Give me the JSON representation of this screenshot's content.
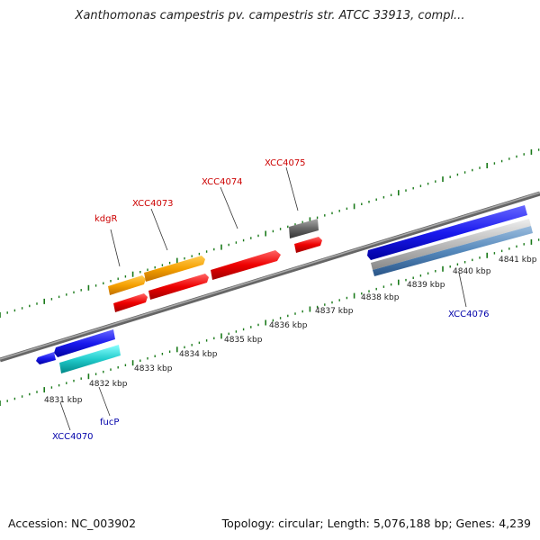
{
  "title": "Xanthomonas campestris pv. campestris str. ATCC 33913, compl...",
  "accession": "Accession: NC_003902",
  "summary": "Topology: circular; Length: 5,076,188 bp; Genes: 4,239",
  "scale_labels": [
    "4831 kbp",
    "4832 kbp",
    "4833 kbp",
    "4834 kbp",
    "4835 kbp",
    "4836 kbp",
    "4837 kbp",
    "4838 kbp",
    "4839 kbp",
    "4840 kbp",
    "4841 kbp"
  ],
  "genes": {
    "kdgR": {
      "label": "kdgR",
      "color": "#cc0000"
    },
    "XCC4073": {
      "label": "XCC4073",
      "color": "#cc0000"
    },
    "XCC4074": {
      "label": "XCC4074",
      "color": "#cc0000"
    },
    "XCC4075": {
      "label": "XCC4075",
      "color": "#cc0000"
    },
    "XCC4076": {
      "label": "XCC4076",
      "color": "#0000aa"
    },
    "fucP": {
      "label": "fucP",
      "color": "#0000aa"
    },
    "XCC4070": {
      "label": "XCC4070",
      "color": "#0000aa"
    }
  },
  "colors": {
    "backbone": "#888888",
    "tick": "#1a7a1a",
    "orange": "#f5a000",
    "red": "#ee0000",
    "blue": "#1a1aee",
    "cyan": "#22cccc",
    "gray": "#666666",
    "steel": "#5588bb"
  }
}
